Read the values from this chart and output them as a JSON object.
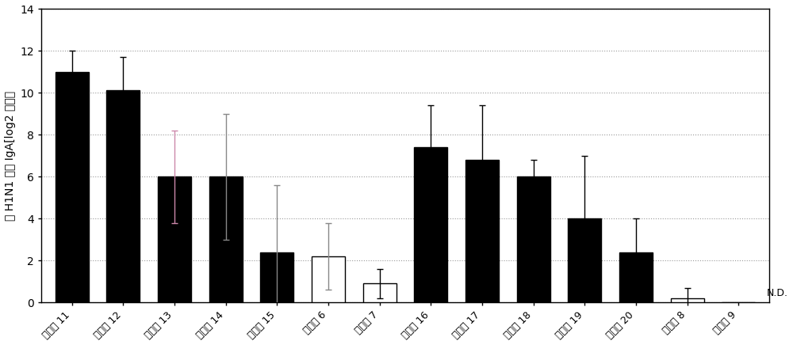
{
  "categories": [
    "实施例 11",
    "实施例 12",
    "实施例 13",
    "实施例 14",
    "实施例 15",
    "比较例 6",
    "比较例 7",
    "实施例 16",
    "实施例 17",
    "实施例 18",
    "实施例 19",
    "实施例 20",
    "比较例 8",
    "比较例 9"
  ],
  "values": [
    11.0,
    10.1,
    6.0,
    6.0,
    2.4,
    2.2,
    0.9,
    7.4,
    6.8,
    6.0,
    4.0,
    2.4,
    0.2,
    0.0
  ],
  "errors_upper": [
    1.0,
    1.6,
    2.2,
    3.0,
    3.2,
    1.6,
    0.7,
    2.0,
    2.6,
    0.8,
    3.0,
    1.6,
    0.5,
    0.0
  ],
  "errors_lower": [
    1.0,
    1.6,
    2.2,
    3.0,
    3.2,
    1.6,
    0.7,
    2.0,
    2.6,
    0.8,
    3.0,
    1.6,
    0.5,
    0.0
  ],
  "bar_colors": [
    "#000000",
    "#000000",
    "#000000",
    "#000000",
    "#000000",
    "#ffffff",
    "#ffffff",
    "#000000",
    "#000000",
    "#000000",
    "#000000",
    "#000000",
    "#ffffff",
    "#ffffff"
  ],
  "bar_edgecolors": [
    "#000000",
    "#000000",
    "#000000",
    "#000000",
    "#000000",
    "#000000",
    "#000000",
    "#000000",
    "#000000",
    "#000000",
    "#000000",
    "#000000",
    "#000000",
    "#000000"
  ],
  "error_colors": [
    "#000000",
    "#000000",
    "#cc88aa",
    "#888888",
    "#888888",
    "#888888",
    "#000000",
    "#000000",
    "#000000",
    "#000000",
    "#000000",
    "#000000",
    "#000000",
    "#000000"
  ],
  "ylabel": "抗 H1N1 粘膜 IgA[log2 效价］",
  "ylim": [
    0,
    14
  ],
  "yticks": [
    0,
    2,
    4,
    6,
    8,
    10,
    12,
    14
  ],
  "nd_label": "N.D.",
  "background_color": "#ffffff",
  "grid_color": "#999999",
  "figsize": [
    10.0,
    4.36
  ],
  "dpi": 100
}
